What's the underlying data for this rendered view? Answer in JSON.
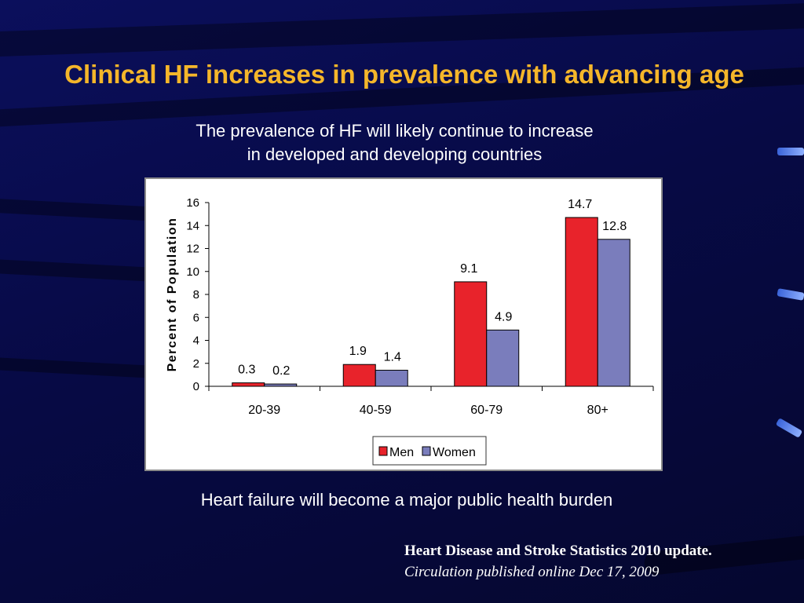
{
  "slide": {
    "title": "Clinical HF increases in prevalence with advancing age",
    "subtitle_line1": "The prevalence of HF will likely continue to increase",
    "subtitle_line2": "in developed and developing countries",
    "footer_note": "Heart failure will become a major public health burden",
    "citation_line1": "Heart Disease and Stroke Statistics 2010 update.",
    "citation_line2": "Circulation published online Dec 17, 2009"
  },
  "colors": {
    "title": "#f5b62a",
    "men": "#e8232b",
    "women": "#7a7dbc"
  },
  "chart_data": {
    "type": "bar",
    "categories": [
      "20-39",
      "40-59",
      "60-79",
      "80+"
    ],
    "series": [
      {
        "name": "Men",
        "values": [
          0.3,
          1.9,
          9.1,
          14.7
        ]
      },
      {
        "name": "Women",
        "values": [
          0.2,
          1.4,
          4.9,
          12.8
        ]
      }
    ],
    "ylabel": "Percent of Population",
    "ylim": [
      0,
      16
    ],
    "yticks": [
      0,
      2,
      4,
      6,
      8,
      10,
      12,
      14,
      16
    ],
    "grid": false,
    "legend": "bottom-right",
    "data_labels": true
  }
}
